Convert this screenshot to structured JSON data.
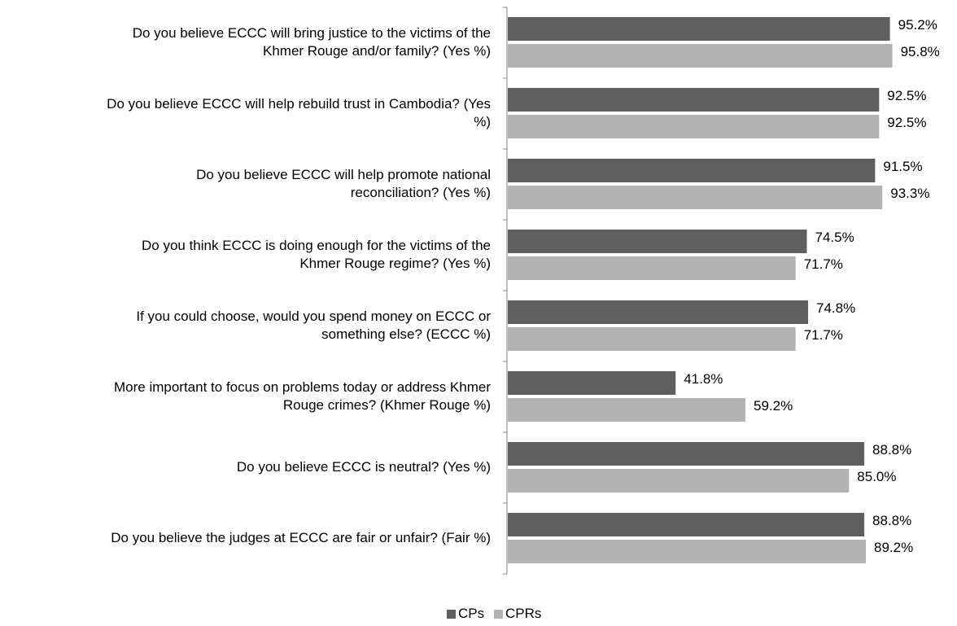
{
  "chart_data": {
    "type": "bar",
    "orientation": "horizontal",
    "categories": [
      [
        "Do you believe ECCC will bring justice to the victims of the",
        "Khmer Rouge and/or family? (Yes %)"
      ],
      [
        "Do you believe ECCC will help rebuild trust in Cambodia? (Yes",
        "%)"
      ],
      [
        "Do you believe ECCC will help promote national",
        "reconciliation? (Yes %)"
      ],
      [
        "Do you think ECCC is doing enough for the victims of the",
        "Khmer Rouge regime? (Yes %)"
      ],
      [
        "If you could choose, would you spend money on ECCC or",
        "something else? (ECCC %)"
      ],
      [
        "More important to focus on problems today or address Khmer",
        "Rouge crimes? (Khmer Rouge %)"
      ],
      [
        "Do you believe ECCC is neutral? (Yes %)"
      ],
      [
        "Do you believe the judges at ECCC are fair or unfair? (Fair %)"
      ]
    ],
    "series": [
      {
        "name": "CPs",
        "color": "#5f5f5f",
        "values": [
          95.2,
          92.5,
          91.5,
          74.5,
          74.8,
          41.8,
          88.8,
          88.8
        ],
        "labels": [
          "95.2%",
          "92.5%",
          "91.5%",
          "74.5%",
          "74.8%",
          "41.8%",
          "88.8%",
          "88.8%"
        ]
      },
      {
        "name": "CPRs",
        "color": "#b3b3b3",
        "values": [
          95.8,
          92.5,
          93.3,
          71.7,
          71.7,
          59.2,
          85.0,
          89.2
        ],
        "labels": [
          "95.8%",
          "92.5%",
          "93.3%",
          "71.7%",
          "71.7%",
          "59.2%",
          "85.0%",
          "89.2%"
        ]
      }
    ],
    "xlim": [
      0,
      100
    ],
    "grid": false,
    "legend_position": "bottom-center",
    "title": "",
    "xlabel": "",
    "ylabel": ""
  }
}
